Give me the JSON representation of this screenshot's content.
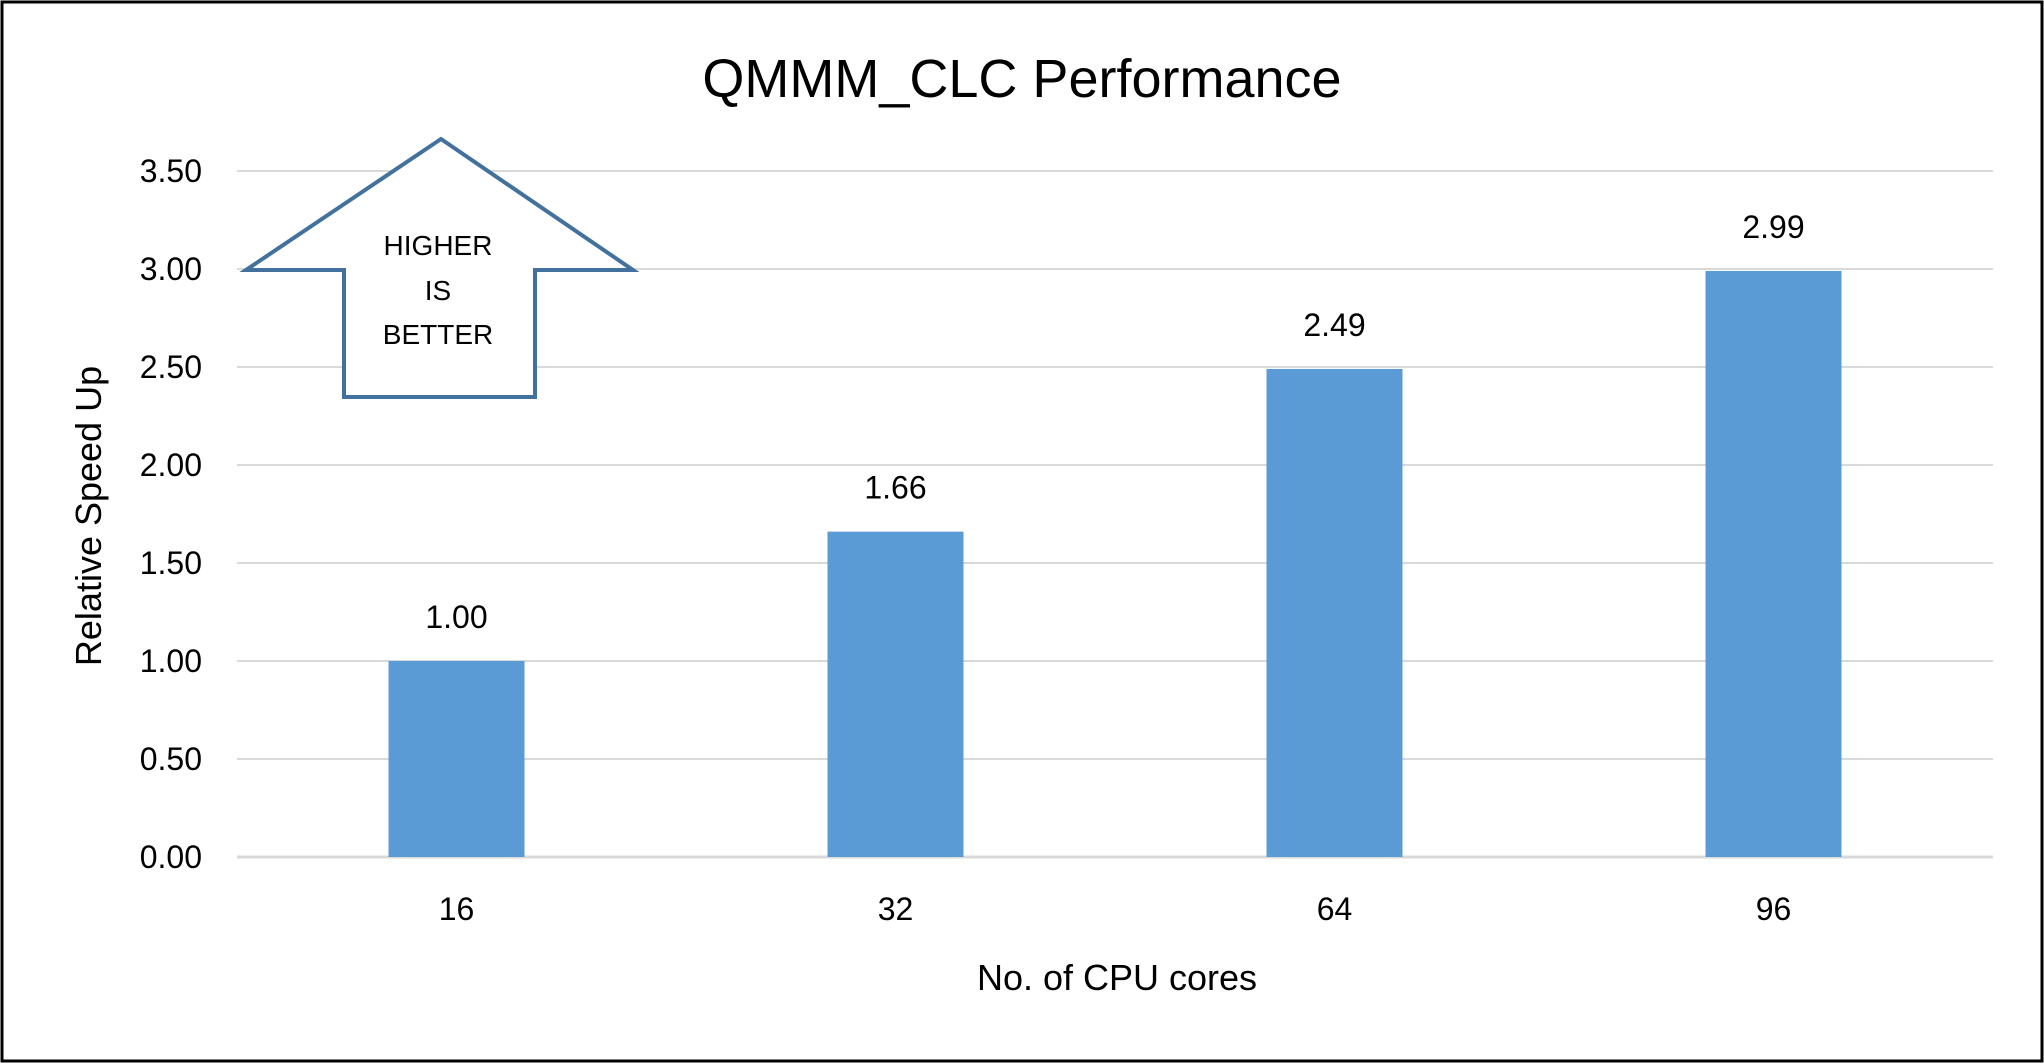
{
  "chart_data": {
    "type": "bar",
    "title": "QMMM_CLC Performance",
    "xlabel": "No. of CPU cores",
    "ylabel": "Relative Speed Up",
    "categories": [
      "16",
      "32",
      "64",
      "96"
    ],
    "values": [
      1.0,
      1.66,
      2.49,
      2.99
    ],
    "data_labels": [
      "1.00",
      "1.66",
      "2.49",
      "2.99"
    ],
    "ylim": [
      0,
      3.5
    ],
    "yticks": [
      0,
      0.5,
      1.0,
      1.5,
      2.0,
      2.5,
      3.0,
      3.5
    ],
    "ytick_labels": [
      "0.00",
      "0.50",
      "1.00",
      "1.50",
      "2.00",
      "2.50",
      "3.00",
      "3.50"
    ],
    "grid": true,
    "legend": "none",
    "bar_color": "#5B9BD5",
    "grid_color": "#D9D9D9",
    "annotation": {
      "shape": "up-arrow",
      "lines": [
        "HIGHER",
        "IS",
        "BETTER"
      ],
      "stroke_color": "#41719C"
    }
  }
}
